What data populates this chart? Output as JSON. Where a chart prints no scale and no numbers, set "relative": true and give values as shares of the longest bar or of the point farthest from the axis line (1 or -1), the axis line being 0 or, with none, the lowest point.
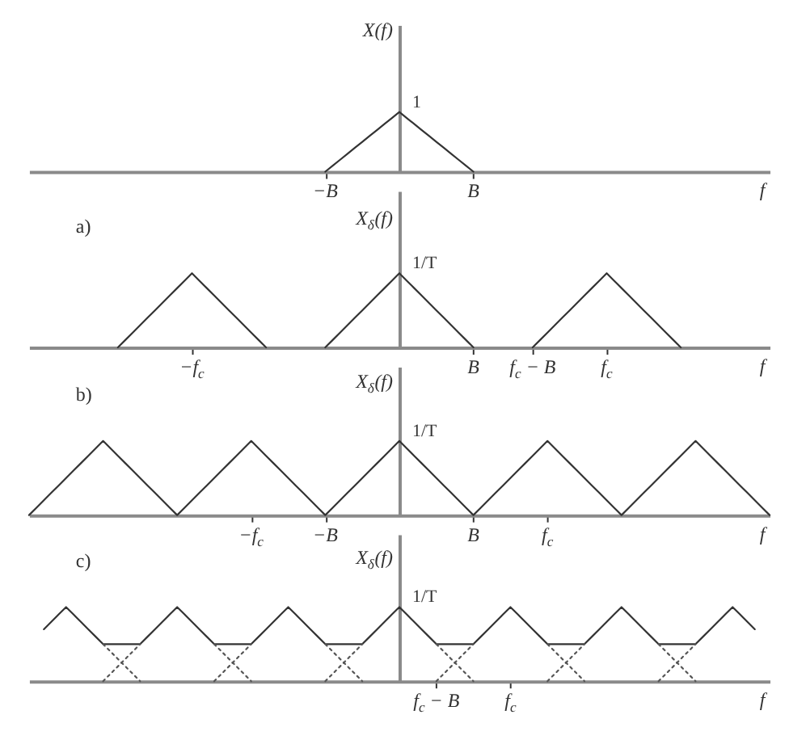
{
  "chart_data": [
    {
      "type": "line",
      "xlabel": "f",
      "ylabel": "X(f)",
      "relative": true,
      "categories": [
        null,
        null,
        null,
        null,
        null,
        null,
        null,
        null,
        null,
        null,
        null,
        null,
        null,
        null,
        null,
        null,
        null,
        null,
        null,
        null,
        null,
        null,
        null,
        null,
        null,
        null,
        null,
        null,
        null,
        null,
        null,
        null,
        null,
        null,
        null,
        null,
        null,
        null,
        null,
        null,
        "−B",
        null,
        null,
        null,
        null,
        null,
        null,
        null,
        null,
        null,
        null,
        null,
        null,
        null,
        null,
        null,
        null,
        null,
        null,
        null,
        "B",
        null,
        null,
        null,
        null,
        null,
        null,
        null,
        null,
        null,
        null,
        null,
        null,
        null,
        null,
        null,
        null,
        null,
        null,
        null,
        null,
        null,
        null,
        null,
        null,
        null,
        null,
        null,
        null,
        null,
        null,
        null,
        null,
        null,
        null,
        null,
        null,
        null,
        null,
        null,
        null
      ],
      "series": [
        {
          "color": "#333333",
          "values": [
            null,
            null,
            null,
            null,
            null,
            null,
            null,
            null,
            null,
            null,
            null,
            null,
            null,
            null,
            null,
            null,
            null,
            null,
            null,
            null,
            null,
            null,
            null,
            null,
            null,
            null,
            null,
            null,
            null,
            null,
            null,
            null,
            null,
            null,
            null,
            null,
            null,
            null,
            null,
            null,
            0,
            0.1,
            0.2,
            0.3,
            0.4,
            0.5,
            0.6,
            0.7,
            0.8,
            0.9,
            1,
            0.9,
            0.8,
            0.7,
            0.6,
            0.5,
            0.4,
            0.3,
            0.2,
            0.1,
            0,
            null,
            null,
            null,
            null,
            null,
            null,
            null,
            null,
            null,
            null,
            null,
            null,
            null,
            null,
            null,
            null,
            null,
            null,
            null,
            null,
            null,
            null,
            null,
            null,
            null,
            null,
            null,
            null,
            null,
            null,
            null,
            null,
            null,
            null,
            null,
            null,
            null,
            null,
            null,
            null
          ]
        }
      ],
      "annotations": [
        "1"
      ]
    },
    {
      "type": "line",
      "title": "a)",
      "xlabel": "f",
      "ylabel": "X$_{δ}$(f)",
      "relative": true,
      "categories": [
        null,
        null,
        null,
        null,
        null,
        null,
        null,
        null,
        null,
        null,
        null,
        null,
        null,
        null,
        null,
        null,
        null,
        null,
        null,
        null,
        null,
        null,
        "−f$_{c}$",
        null,
        null,
        null,
        null,
        null,
        null,
        null,
        null,
        null,
        null,
        null,
        null,
        null,
        null,
        null,
        null,
        null,
        null,
        null,
        null,
        null,
        null,
        null,
        null,
        null,
        null,
        null,
        null,
        null,
        null,
        null,
        null,
        null,
        null,
        null,
        null,
        null,
        "B",
        null,
        null,
        null,
        null,
        null,
        null,
        null,
        "f$_{c}$ − B",
        null,
        null,
        null,
        null,
        null,
        null,
        null,
        null,
        null,
        "f$_{c}$",
        null,
        null,
        null,
        null,
        null,
        null,
        null,
        null,
        null,
        null,
        null,
        null,
        null,
        null,
        null,
        null,
        null,
        null,
        null,
        null,
        null,
        null
      ],
      "series": [
        {
          "color": "#333333",
          "values": [
            null,
            null,
            null,
            null,
            null,
            null,
            null,
            null,
            null,
            null,
            null,
            null,
            0,
            0.1,
            0.2,
            0.3,
            0.4,
            0.5,
            0.6,
            0.7,
            0.8,
            0.9,
            1,
            0.9,
            0.8,
            0.7,
            0.6,
            0.5,
            0.4,
            0.3,
            0.2,
            0.1,
            0,
            null,
            null,
            null,
            null,
            null,
            null,
            null,
            0,
            0.1,
            0.2,
            0.3,
            0.4,
            0.5,
            0.6,
            0.7,
            0.8,
            0.9,
            1,
            0.9,
            0.8,
            0.7,
            0.6,
            0.5,
            0.4,
            0.3,
            0.2,
            0.1,
            0,
            null,
            null,
            null,
            null,
            null,
            null,
            null,
            0,
            0.1,
            0.2,
            0.3,
            0.4,
            0.5,
            0.6,
            0.7,
            0.8,
            0.9,
            1,
            0.9,
            0.8,
            0.7,
            0.6,
            0.5,
            0.4,
            0.3,
            0.2,
            0.1,
            0,
            null,
            null,
            null,
            null,
            null,
            null,
            null,
            null,
            null,
            null,
            null,
            null
          ]
        }
      ],
      "annotations": [
        "1/T"
      ]
    },
    {
      "type": "line",
      "title": "b)",
      "xlabel": "f",
      "ylabel": "X$_{δ}$(f)",
      "relative": true,
      "categories": [
        null,
        null,
        null,
        null,
        null,
        null,
        null,
        null,
        null,
        null,
        null,
        null,
        null,
        null,
        null,
        null,
        null,
        null,
        null,
        null,
        null,
        null,
        null,
        null,
        null,
        null,
        null,
        null,
        null,
        null,
        "−f$_{c}$",
        null,
        null,
        null,
        null,
        null,
        null,
        null,
        null,
        null,
        "−B",
        null,
        null,
        null,
        null,
        null,
        null,
        null,
        null,
        null,
        null,
        null,
        null,
        null,
        null,
        null,
        null,
        null,
        null,
        null,
        "B",
        null,
        null,
        null,
        null,
        null,
        null,
        null,
        null,
        null,
        "f$_{c}$",
        null,
        null,
        null,
        null,
        null,
        null,
        null,
        null,
        null,
        null,
        null,
        null,
        null,
        null,
        null,
        null,
        null,
        null,
        null,
        null,
        null,
        null,
        null,
        null,
        null,
        null,
        null,
        null,
        null,
        null
      ],
      "series": [
        {
          "color": "#333333",
          "values": [
            0,
            0.1,
            0.2,
            0.3,
            0.4,
            0.5,
            0.6,
            0.7,
            0.8,
            0.9,
            1,
            0.9,
            0.8,
            0.7,
            0.6,
            0.5,
            0.4,
            0.3,
            0.2,
            0.1,
            0,
            0.1,
            0.2,
            0.3,
            0.4,
            0.5,
            0.6,
            0.7,
            0.8,
            0.9,
            1,
            0.9,
            0.8,
            0.7,
            0.6,
            0.5,
            0.4,
            0.3,
            0.2,
            0.1,
            0,
            0.1,
            0.2,
            0.3,
            0.4,
            0.5,
            0.6,
            0.7,
            0.8,
            0.9,
            1,
            0.9,
            0.8,
            0.7,
            0.6,
            0.5,
            0.4,
            0.3,
            0.2,
            0.1,
            0,
            0.1,
            0.2,
            0.3,
            0.4,
            0.5,
            0.6,
            0.7,
            0.8,
            0.9,
            1,
            0.9,
            0.8,
            0.7,
            0.6,
            0.5,
            0.4,
            0.3,
            0.2,
            0.1,
            0,
            0.1,
            0.2,
            0.3,
            0.4,
            0.5,
            0.6,
            0.7,
            0.8,
            0.9,
            1,
            0.9,
            0.8,
            0.7,
            0.6,
            0.5,
            0.4,
            0.3,
            0.2,
            0.1,
            0
          ]
        }
      ],
      "annotations": [
        "1/T"
      ]
    },
    {
      "type": "line",
      "title": "c)",
      "xlabel": "f",
      "ylabel": "X$_{δ}$(f)",
      "relative": true,
      "categories": [
        null,
        null,
        null,
        null,
        null,
        null,
        null,
        null,
        null,
        null,
        null,
        null,
        null,
        null,
        null,
        null,
        null,
        null,
        null,
        null,
        null,
        null,
        null,
        null,
        null,
        null,
        null,
        null,
        null,
        null,
        null,
        null,
        null,
        null,
        null,
        null,
        null,
        null,
        null,
        null,
        null,
        null,
        null,
        null,
        null,
        null,
        null,
        null,
        null,
        null,
        null,
        null,
        null,
        null,
        null,
        "f$_{c}$ − B",
        null,
        null,
        null,
        null,
        null,
        null,
        null,
        null,
        null,
        "f$_{c}$",
        null,
        null,
        null,
        null,
        null,
        null,
        null,
        null,
        null,
        null,
        null,
        null,
        null,
        null,
        null,
        null,
        null,
        null,
        null,
        null,
        null,
        null,
        null,
        null,
        null,
        null,
        null,
        null,
        null,
        null,
        null,
        null,
        null,
        null,
        null
      ],
      "series": [
        {
          "color": "#333333",
          "values": [
            null,
            null,
            0.7,
            0.8,
            0.9,
            1,
            0.9,
            0.8,
            0.7,
            0.6,
            0.5,
            0.5,
            0.5,
            0.5,
            0.5,
            0.5,
            0.6,
            0.7,
            0.8,
            0.9,
            1,
            0.9,
            0.8,
            0.7,
            0.6,
            0.5,
            0.5,
            0.5,
            0.5,
            0.5,
            0.5,
            0.6,
            0.7,
            0.8,
            0.9,
            1,
            0.9,
            0.8,
            0.7,
            0.6,
            0.5,
            0.5,
            0.5,
            0.5,
            0.5,
            0.5,
            0.6,
            0.7,
            0.8,
            0.9,
            1,
            0.9,
            0.8,
            0.7,
            0.6,
            0.5,
            0.5,
            0.5,
            0.5,
            0.5,
            0.5,
            0.6,
            0.7,
            0.8,
            0.9,
            1,
            0.9,
            0.8,
            0.7,
            0.6,
            0.5,
            0.5,
            0.5,
            0.5,
            0.5,
            0.5,
            0.6,
            0.7,
            0.8,
            0.9,
            1,
            0.9,
            0.8,
            0.7,
            0.6,
            0.5,
            0.5,
            0.5,
            0.5,
            0.5,
            0.5,
            0.6,
            0.7,
            0.8,
            0.9,
            1,
            0.9,
            0.8,
            0.7,
            null,
            null
          ]
        },
        {
          "color": "#555555",
          "line_style": "dotted",
          "values": [
            null,
            null,
            null,
            null,
            null,
            null,
            null,
            null,
            null,
            null,
            0.5,
            0.4,
            0.3,
            0.2,
            0.1,
            0,
            null,
            null,
            null,
            null,
            null,
            null,
            null,
            null,
            null,
            0.5,
            0.4,
            0.3,
            0.2,
            0.1,
            0,
            null,
            null,
            null,
            null,
            null,
            null,
            null,
            null,
            null,
            0.5,
            0.4,
            0.3,
            0.2,
            0.1,
            0,
            null,
            null,
            null,
            null,
            null,
            null,
            null,
            null,
            null,
            0.5,
            0.4,
            0.3,
            0.2,
            0.1,
            0,
            null,
            null,
            null,
            null,
            null,
            null,
            null,
            null,
            null,
            0.5,
            0.4,
            0.3,
            0.2,
            0.1,
            0,
            null,
            null,
            null,
            null,
            null,
            null,
            null,
            null,
            null,
            0.5,
            0.4,
            0.3,
            0.2,
            0.1,
            0,
            null,
            null,
            null,
            null,
            null,
            null,
            null,
            null,
            null,
            null
          ]
        },
        {
          "color": "#555555",
          "line_style": "dotted",
          "values": [
            null,
            null,
            null,
            null,
            null,
            null,
            null,
            null,
            null,
            null,
            0,
            0.1,
            0.2,
            0.3,
            0.4,
            0.5,
            null,
            null,
            null,
            null,
            null,
            null,
            null,
            null,
            null,
            0,
            0.1,
            0.2,
            0.3,
            0.4,
            0.5,
            null,
            null,
            null,
            null,
            null,
            null,
            null,
            null,
            null,
            0,
            0.1,
            0.2,
            0.3,
            0.4,
            0.5,
            null,
            null,
            null,
            null,
            null,
            null,
            null,
            null,
            null,
            0,
            0.1,
            0.2,
            0.3,
            0.4,
            0.5,
            null,
            null,
            null,
            null,
            null,
            null,
            null,
            null,
            null,
            0,
            0.1,
            0.2,
            0.3,
            0.4,
            0.5,
            null,
            null,
            null,
            null,
            null,
            null,
            null,
            null,
            null,
            0,
            0.1,
            0.2,
            0.3,
            0.4,
            0.5,
            null,
            null,
            null,
            null,
            null,
            null,
            null,
            null,
            null,
            null
          ]
        }
      ],
      "annotations": [
        "1/T"
      ]
    }
  ]
}
